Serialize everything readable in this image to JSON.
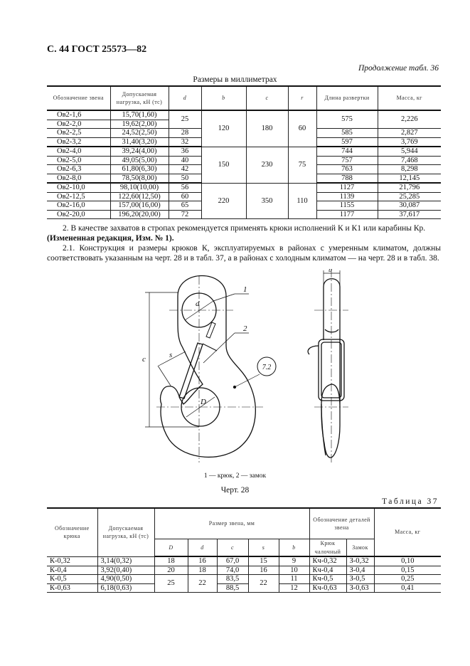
{
  "header": {
    "title": "С. 44 ГОСТ 25573—82"
  },
  "table36": {
    "continuation": "Продолжение табл. 36",
    "units": "Размеры в миллиметрах",
    "columns": [
      "Обозначение звена",
      "Допускаемая нагрузка, кН (тс)",
      "d",
      "b",
      "c",
      "r",
      "Длина развертки",
      "Масса, кг"
    ],
    "rows": [
      [
        "Ов2-1,6",
        "15,70(1,60)",
        "25",
        "120",
        "180",
        "60",
        "575",
        "2,226"
      ],
      [
        "Ов2-2,0",
        "19,62(2,00)",
        null,
        null,
        null,
        null,
        null,
        null
      ],
      [
        "Ов2-2,5",
        "24,52(2,50)",
        "28",
        null,
        null,
        null,
        "585",
        "2,827"
      ],
      [
        "Ов2-3,2",
        "31,40(3,20)",
        "32",
        null,
        null,
        null,
        "597",
        "3,769"
      ],
      [
        "Ов2-4,0",
        "39,24(4,00)",
        "36",
        "150",
        "230",
        "75",
        "744",
        "5,944"
      ],
      [
        "Ов2-5,0",
        "49,05(5,00)",
        "40",
        null,
        null,
        null,
        "757",
        "7,468"
      ],
      [
        "Ов2-6,3",
        "61,80(6,30)",
        "42",
        null,
        null,
        null,
        "763",
        "8,298"
      ],
      [
        "Ов2-8,0",
        "78,50(8,00)",
        "50",
        null,
        null,
        null,
        "788",
        "12,145"
      ],
      [
        "Ов2-10,0",
        "98,10(10,00)",
        "56",
        "220",
        "350",
        "110",
        "1127",
        "21,796"
      ],
      [
        "Ов2-12,5",
        "122,60(12,50)",
        "60",
        null,
        null,
        null,
        "1139",
        "25,285"
      ],
      [
        "Ов2-16,0",
        "157,00(16,00)",
        "65",
        null,
        null,
        null,
        "1155",
        "30,087"
      ],
      [
        "Ов2-20,0",
        "196,20(20,00)",
        "72",
        null,
        null,
        null,
        "1177",
        "37,617"
      ]
    ]
  },
  "text": {
    "p1": "2. В качестве захватов в стропах рекомендуется применять крюки исполнений К и К1 или карабины Кр.",
    "p1_note": "(Измененная редакция, Изм. № 1).",
    "p2": "2.1. Конструкция и размеры крюков К, эксплуатируемых в районах с умеренным климатом, должны соответствовать указанным на черт. 28 и в табл. 37, а в районах с холодным климатом — на черт. 28 и в табл. 38."
  },
  "drawing": {
    "labels": {
      "part1": "1",
      "part2": "2",
      "c": "c",
      "s": "s",
      "d": "d",
      "D": "D",
      "b": "b",
      "mark": "7.2"
    },
    "caption": "1 — крюк, 2 — замок",
    "title": "Черт. 28"
  },
  "table37": {
    "title": "Таблица 37",
    "headers": {
      "designation": "Обозначение крюка",
      "load": "Допускаемая нагрузка, кН (тс)",
      "size_group": "Размер звена, мм",
      "parts_group": "Обозначение деталей звена",
      "mass": "Масса, кг",
      "D": "D",
      "d": "d",
      "c": "c",
      "s": "s",
      "b": "b",
      "hook": "Крюк чалочный",
      "lock": "Замок"
    },
    "rows": [
      [
        "К-0,32",
        "3,14(0,32)",
        "18",
        "16",
        "67,0",
        "15",
        "9",
        "Кч-0,32",
        "З-0,32",
        "0,10"
      ],
      [
        "К-0,4",
        "3,92(0,40)",
        "20",
        "18",
        "74,0",
        "16",
        "10",
        "Кч-0,4",
        "З-0,4",
        "0,15"
      ],
      [
        "К-0,5",
        "4,90(0,50)",
        "25",
        "22",
        "83,5",
        "22",
        "11",
        "Кч-0,5",
        "З-0,5",
        "0,25"
      ],
      [
        "К-0,63",
        "6,18(0,63)",
        null,
        null,
        "88,5",
        null,
        "12",
        "Кч-0,63",
        "З-0,63",
        "0,41"
      ]
    ]
  }
}
